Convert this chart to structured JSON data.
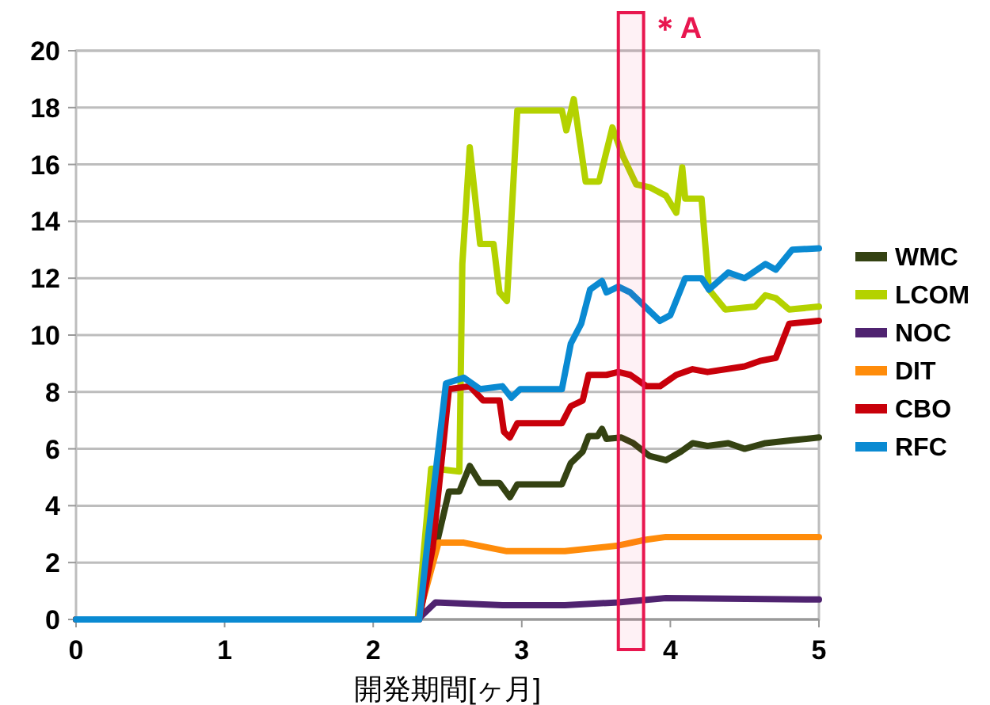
{
  "chart_data": {
    "type": "line",
    "xlabel": "開発期間[ヶ月]",
    "xlim": [
      0,
      5
    ],
    "xticks": [
      0,
      1,
      2,
      3,
      4,
      5
    ],
    "ylim": [
      0,
      20
    ],
    "yticks": [
      0,
      2,
      4,
      6,
      8,
      10,
      12,
      14,
      16,
      18,
      20
    ],
    "grid": "y",
    "legend": "right",
    "line_style": "solid",
    "marker": "none",
    "bands": [
      {
        "axis": "x",
        "from": 3.65,
        "to": 3.82,
        "label": "＊A",
        "color": "#e8174f"
      }
    ],
    "series": [
      {
        "name": "WMC",
        "color": "#344212",
        "x": [
          0,
          2.3,
          2.42,
          2.51,
          2.58,
          2.65,
          2.72,
          2.85,
          2.92,
          2.97,
          3.27,
          3.33,
          3.41,
          3.45,
          3.51,
          3.54,
          3.57,
          3.67,
          3.75,
          3.86,
          3.97,
          4.07,
          4.15,
          4.25,
          4.39,
          4.5,
          4.64,
          4.82,
          5
        ],
        "values": [
          0,
          0,
          2.5,
          4.5,
          4.5,
          5.4,
          4.8,
          4.8,
          4.3,
          4.75,
          4.75,
          5.5,
          5.9,
          6.45,
          6.45,
          6.7,
          6.35,
          6.4,
          6.2,
          5.75,
          5.6,
          5.9,
          6.2,
          6.1,
          6.2,
          6.0,
          6.2,
          6.3,
          6.4
        ]
      },
      {
        "name": "LCOM",
        "color": "#b4d200",
        "x": [
          0,
          2.3,
          2.39,
          2.42,
          2.58,
          2.6,
          2.65,
          2.72,
          2.81,
          2.85,
          2.9,
          2.97,
          3.27,
          3.3,
          3.35,
          3.43,
          3.52,
          3.61,
          3.68,
          3.77,
          3.86,
          3.97,
          4.04,
          4.08,
          4.1,
          4.21,
          4.26,
          4.37,
          4.57,
          4.64,
          4.71,
          4.8,
          5
        ],
        "values": [
          0,
          0,
          5.3,
          5.3,
          5.2,
          12.5,
          16.6,
          13.2,
          13.2,
          11.5,
          11.2,
          17.9,
          17.9,
          17.2,
          18.3,
          15.4,
          15.4,
          17.3,
          16.3,
          15.3,
          15.2,
          14.9,
          14.3,
          15.9,
          14.8,
          14.8,
          11.6,
          10.9,
          11.0,
          11.4,
          11.3,
          10.9,
          11.0
        ]
      },
      {
        "name": "NOC",
        "color": "#4f2370",
        "x": [
          0,
          2.3,
          2.42,
          2.87,
          3.29,
          3.65,
          3.97,
          5
        ],
        "values": [
          0,
          0,
          0.6,
          0.5,
          0.5,
          0.6,
          0.75,
          0.7
        ]
      },
      {
        "name": "DIT",
        "color": "#ff8c0a",
        "x": [
          0,
          2.3,
          2.44,
          2.61,
          2.9,
          3.29,
          3.65,
          3.83,
          3.97,
          5
        ],
        "values": [
          0,
          0,
          2.7,
          2.7,
          2.4,
          2.4,
          2.6,
          2.8,
          2.9,
          2.9
        ]
      },
      {
        "name": "CBO",
        "color": "#c8000a",
        "x": [
          0,
          2.31,
          2.4,
          2.51,
          2.65,
          2.74,
          2.85,
          2.88,
          2.92,
          2.97,
          3.27,
          3.33,
          3.41,
          3.45,
          3.57,
          3.65,
          3.73,
          3.84,
          3.93,
          4.04,
          4.15,
          4.25,
          4.5,
          4.61,
          4.71,
          4.8,
          5
        ],
        "values": [
          0,
          0,
          2.5,
          8.1,
          8.2,
          7.7,
          7.7,
          6.6,
          6.4,
          6.9,
          6.9,
          7.5,
          7.7,
          8.6,
          8.6,
          8.7,
          8.6,
          8.2,
          8.2,
          8.6,
          8.8,
          8.7,
          8.9,
          9.1,
          9.2,
          10.4,
          10.5
        ]
      },
      {
        "name": "RFC",
        "color": "#0a8ad2",
        "x": [
          0,
          2.31,
          2.37,
          2.49,
          2.61,
          2.72,
          2.87,
          2.93,
          2.99,
          3.27,
          3.33,
          3.4,
          3.46,
          3.54,
          3.57,
          3.65,
          3.73,
          3.83,
          3.93,
          4.0,
          4.1,
          4.21,
          4.26,
          4.39,
          4.5,
          4.64,
          4.71,
          4.82,
          5
        ],
        "values": [
          0,
          0,
          2.9,
          8.3,
          8.5,
          8.1,
          8.2,
          7.8,
          8.1,
          8.1,
          9.7,
          10.4,
          11.6,
          11.9,
          11.5,
          11.7,
          11.5,
          11.0,
          10.5,
          10.7,
          12.0,
          12.0,
          11.6,
          12.2,
          12.0,
          12.5,
          12.3,
          13.0,
          13.05
        ]
      }
    ]
  }
}
